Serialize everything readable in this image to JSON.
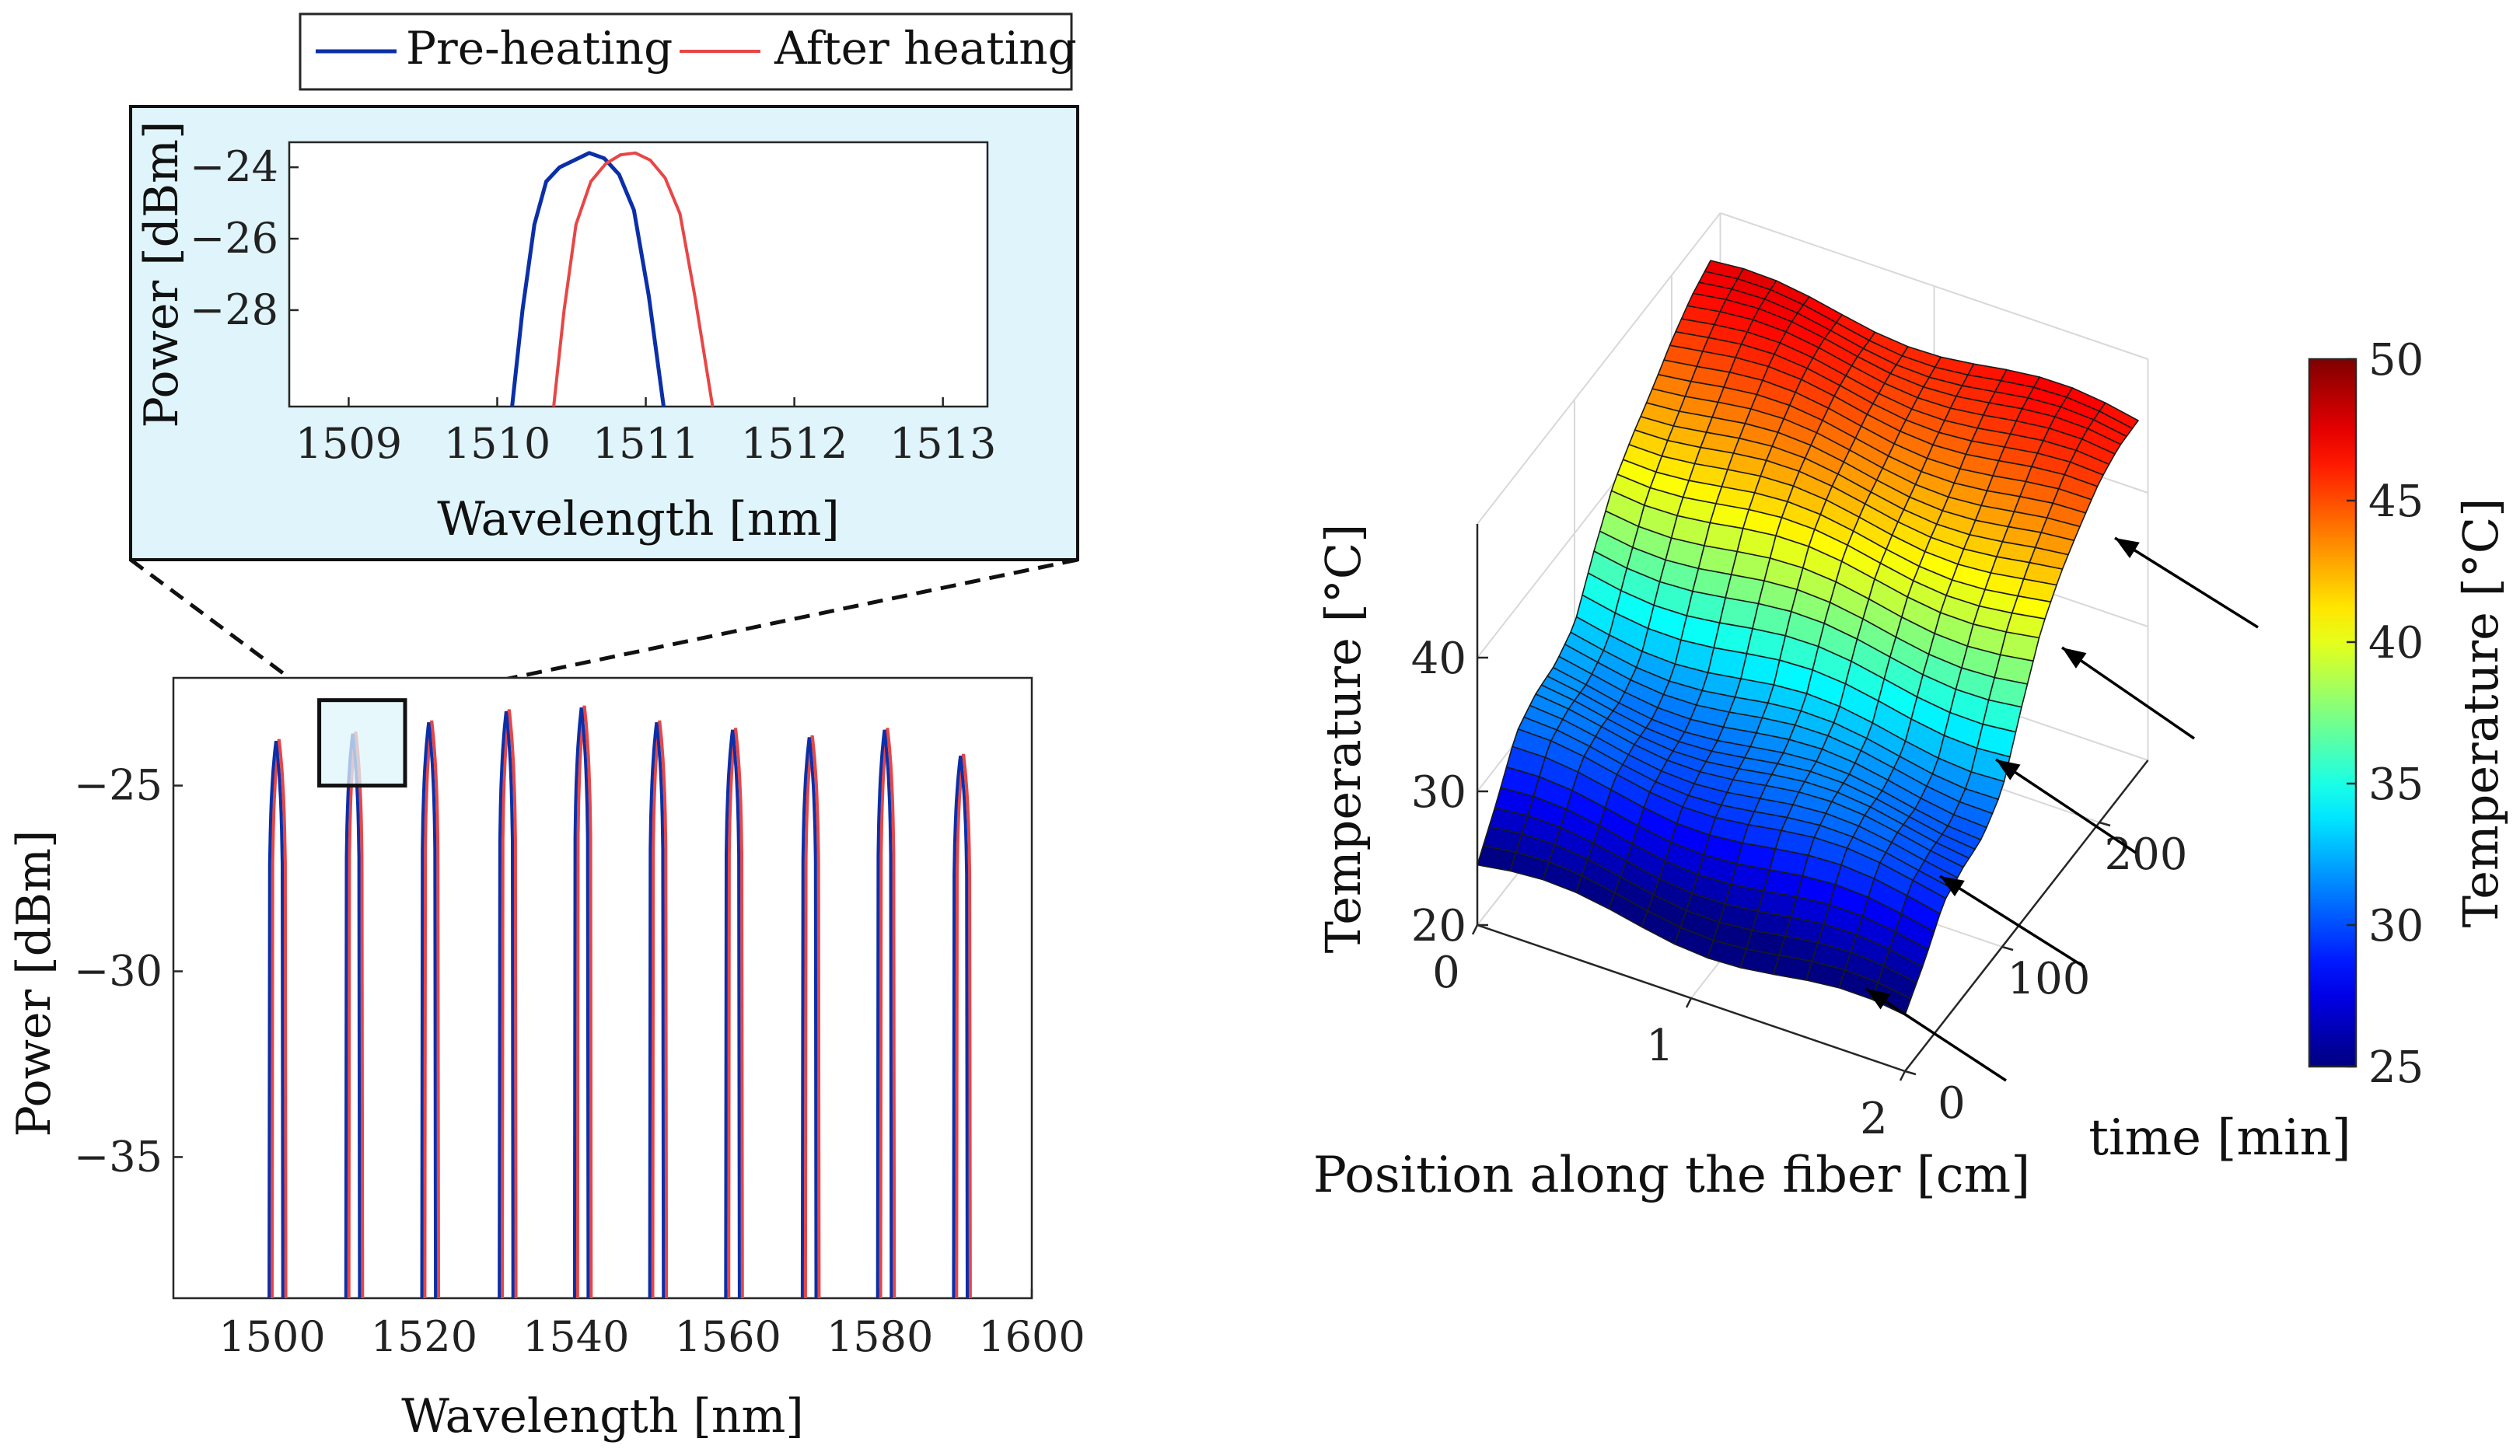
{
  "colors": {
    "pre_heating": "#0b2fa8",
    "after_heating": "#e84646",
    "inset_background": "#dff5fb",
    "axis": "#262626",
    "annotation": "#000000"
  },
  "legend": {
    "entries": [
      "Pre-heating",
      "After heating"
    ]
  },
  "chart_data": [
    {
      "id": "inset-spectrum",
      "type": "line",
      "title": "",
      "xlabel": "Wavelength [nm]",
      "ylabel": "Power [dBm]",
      "xlim": [
        1508.6,
        1513.3
      ],
      "ylim": [
        -30.7,
        -23.3
      ],
      "xticks": [
        1509,
        1510,
        1511,
        1512,
        1513
      ],
      "xtick_labels": [
        "1509",
        "1510",
        "1511",
        "1512",
        "1513"
      ],
      "yticks": [
        -24,
        -26,
        -28
      ],
      "ytick_labels": [
        "−24",
        "−26",
        "−28"
      ],
      "series": [
        {
          "name": "Pre-heating",
          "x": [
            1510.1,
            1510.17,
            1510.25,
            1510.33,
            1510.42,
            1510.52,
            1510.62,
            1510.72,
            1510.82,
            1510.92,
            1511.02,
            1511.12
          ],
          "y": [
            -30.7,
            -28.0,
            -25.6,
            -24.4,
            -24.0,
            -23.8,
            -23.6,
            -23.75,
            -24.2,
            -25.2,
            -27.6,
            -30.7
          ]
        },
        {
          "name": "After heating",
          "x": [
            1510.38,
            1510.45,
            1510.53,
            1510.63,
            1510.73,
            1510.83,
            1510.93,
            1511.03,
            1511.13,
            1511.23,
            1511.33,
            1511.45
          ],
          "y": [
            -30.7,
            -28.0,
            -25.6,
            -24.4,
            -23.9,
            -23.65,
            -23.6,
            -23.8,
            -24.3,
            -25.3,
            -27.6,
            -30.7
          ]
        }
      ]
    },
    {
      "id": "full-spectrum",
      "type": "line",
      "title": "",
      "xlabel": "Wavelength [nm]",
      "ylabel": "Power [dBm]",
      "xlim": [
        1487,
        1600
      ],
      "ylim": [
        -38.8,
        -22.1
      ],
      "xticks": [
        1500,
        1520,
        1540,
        1560,
        1580,
        1600
      ],
      "xtick_labels": [
        "1500",
        "1520",
        "1540",
        "1560",
        "1580",
        "1600"
      ],
      "yticks": [
        -25,
        -30,
        -35
      ],
      "ytick_labels": [
        "−25",
        "−30",
        "−35"
      ],
      "zoom_box": {
        "x": [
          1506.2,
          1517.5
        ],
        "y": [
          -25.0,
          -22.7
        ]
      },
      "peaks": {
        "center_nm": [
          1500.5,
          1510.6,
          1520.6,
          1530.8,
          1540.7,
          1550.6,
          1560.6,
          1570.7,
          1580.6,
          1590.6
        ],
        "peak_power_dbm": [
          -23.8,
          -23.6,
          -23.3,
          -23.0,
          -22.9,
          -23.3,
          -23.5,
          -23.7,
          -23.5,
          -24.2
        ],
        "shift_nm": 0.4,
        "halfwidth_nm": 0.9
      }
    },
    {
      "id": "temperature-surface",
      "type": "surface3d",
      "title": "",
      "xlabel": "Position along the fiber [cm]",
      "ylabel": "time [min]",
      "zlabel": "Temperature [°C]",
      "xlim": [
        0,
        2
      ],
      "ylim": [
        0,
        250
      ],
      "zlim": [
        20,
        50
      ],
      "xticks": [
        0,
        1,
        2
      ],
      "xtick_labels": [
        "0",
        "1",
        "2"
      ],
      "yticks": [
        0,
        100,
        200
      ],
      "ytick_labels": [
        "0",
        "100",
        "200"
      ],
      "zticks": [
        20,
        30,
        40
      ],
      "ztick_labels": [
        "20",
        "30",
        "40"
      ],
      "time_min": [
        0,
        20,
        40,
        60,
        80,
        100,
        120,
        140,
        160,
        180,
        200,
        220,
        240
      ],
      "temperature_c": [
        24.5,
        27.0,
        30.0,
        31.0,
        31.5,
        33.0,
        37.0,
        40.5,
        42.5,
        44.0,
        45.5,
        46.5,
        47.0
      ],
      "colorbar": {
        "label": "Temperature [°C]",
        "range": [
          25,
          50
        ],
        "ticks": [
          25,
          30,
          35,
          40,
          45,
          50
        ],
        "tick_labels": [
          "25",
          "30",
          "35",
          "40",
          "45",
          "50"
        ]
      },
      "annotations": {
        "arrows": 5
      }
    }
  ]
}
